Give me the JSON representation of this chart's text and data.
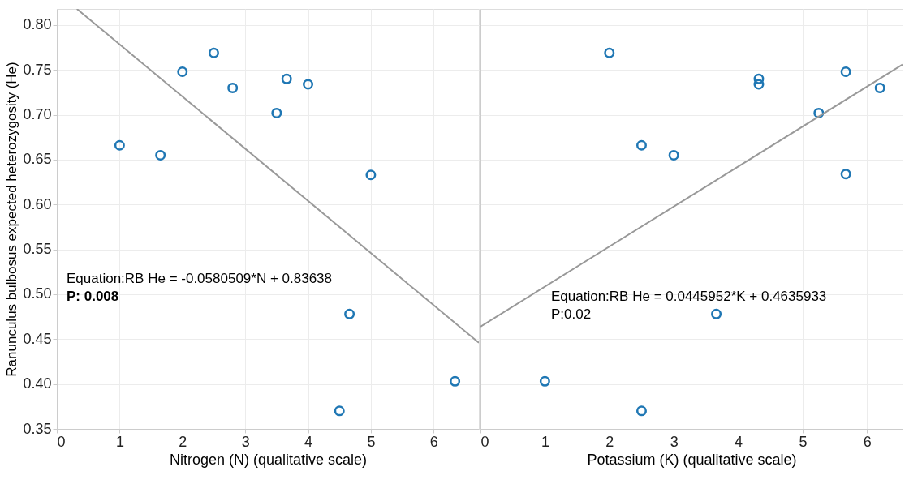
{
  "chart_data": [
    {
      "type": "scatter",
      "xlabel": "Nitrogen (N) (qualitative scale)",
      "ylabel": "Ranunculus bulbosus expected heterozygosity (He)",
      "xlim": [
        0,
        6.72
      ],
      "xticks": [
        0,
        1,
        2,
        3,
        4,
        5,
        6
      ],
      "ylim": [
        0.35,
        0.818
      ],
      "yticks": [
        {
          "value": 0.35,
          "label": "0.35"
        },
        {
          "value": 0.4,
          "label": "0.40"
        },
        {
          "value": 0.45,
          "label": "0.45"
        },
        {
          "value": 0.5,
          "label": "0.50"
        },
        {
          "value": 0.55,
          "label": "0.55"
        },
        {
          "value": 0.6,
          "label": "0.60"
        },
        {
          "value": 0.65,
          "label": "0.65"
        },
        {
          "value": 0.7,
          "label": "0.70"
        },
        {
          "value": 0.75,
          "label": "0.75"
        },
        {
          "value": 0.8,
          "label": "0.80"
        }
      ],
      "grid": true,
      "series": [
        {
          "color": "#1f77b4",
          "marker": "circle",
          "x": [
            1.0,
            1.65,
            2.0,
            2.5,
            2.8,
            3.5,
            3.66,
            4.0,
            5.0,
            4.66,
            4.5,
            6.34
          ],
          "values": [
            0.666,
            0.655,
            0.748,
            0.769,
            0.73,
            0.702,
            0.74,
            0.734,
            0.633,
            0.478,
            0.37,
            0.403
          ]
        },
        {
          "type": "line",
          "color": "#999999",
          "x": [
            0.32,
            6.72
          ],
          "values": [
            0.818,
            0.446
          ]
        }
      ],
      "annotations": [
        "Equation:RB He = -0.0580509*N + 0.83638",
        "P: 0.008"
      ]
    },
    {
      "type": "scatter",
      "xlabel": "Potassium (K) (qualitative scale)",
      "xlim": [
        0,
        6.55
      ],
      "xticks": [
        0,
        1,
        2,
        3,
        4,
        5,
        6
      ],
      "ylim": [
        0.35,
        0.818
      ],
      "yticks": [
        {
          "value": 0.35,
          "label": null
        },
        {
          "value": 0.4,
          "label": null
        },
        {
          "value": 0.45,
          "label": null
        },
        {
          "value": 0.5,
          "label": null
        },
        {
          "value": 0.55,
          "label": null
        },
        {
          "value": 0.6,
          "label": null
        },
        {
          "value": 0.65,
          "label": null
        },
        {
          "value": 0.7,
          "label": null
        },
        {
          "value": 0.75,
          "label": null
        },
        {
          "value": 0.8,
          "label": null
        }
      ],
      "grid": true,
      "tick_labels": "x",
      "series": [
        {
          "color": "#1f77b4",
          "marker": "circle",
          "x": [
            2.0,
            2.5,
            3.0,
            4.32,
            4.32,
            5.25,
            5.67,
            5.67,
            6.2,
            1.0,
            2.5,
            3.66
          ],
          "values": [
            0.769,
            0.666,
            0.655,
            0.74,
            0.734,
            0.702,
            0.748,
            0.634,
            0.73,
            0.403,
            0.37,
            0.478
          ]
        },
        {
          "type": "line",
          "color": "#999999",
          "x": [
            0,
            6.55
          ],
          "values": [
            0.464,
            0.756
          ]
        }
      ],
      "annotations": [
        "Equation:RB He = 0.0445952*K + 0.4635933",
        "P:0.02"
      ]
    }
  ]
}
